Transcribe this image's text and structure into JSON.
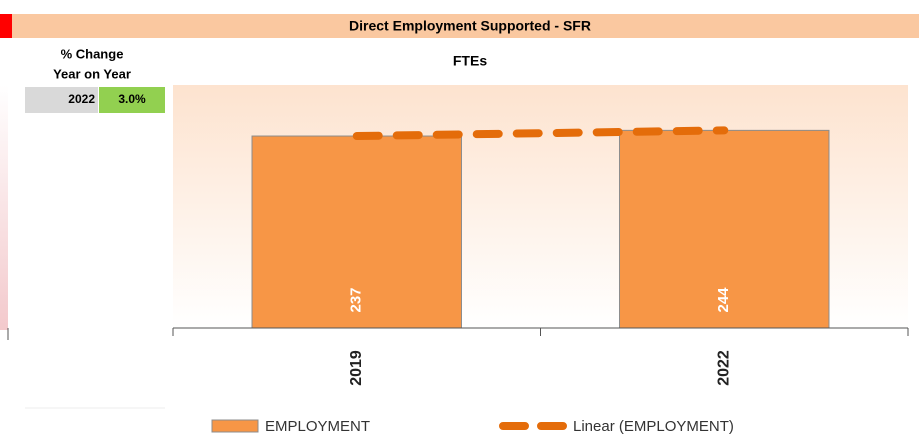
{
  "header": {
    "title": "Direct Employment Supported - SFR"
  },
  "change_panel": {
    "title_lines": [
      "% Change",
      "Year on Year"
    ],
    "year": "2022",
    "value": "3.0%"
  },
  "chart_data": {
    "type": "bar",
    "title": "FTEs",
    "categories": [
      "2019",
      "2022"
    ],
    "series": [
      {
        "name": "EMPLOYMENT",
        "color": "#f79646",
        "values": [
          237,
          244
        ]
      }
    ],
    "trendline": {
      "name": "Linear (EMPLOYMENT)",
      "color": "#e46c0a"
    },
    "ylim": [
      0,
      300
    ]
  }
}
